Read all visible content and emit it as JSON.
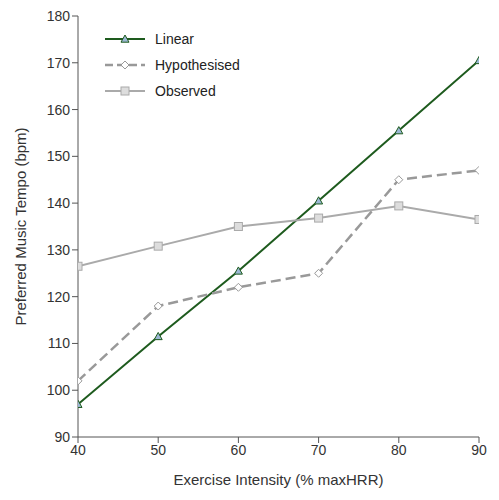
{
  "chart_data": {
    "type": "line",
    "x_label": "Exercise Intensity (% maxHRR)",
    "y_label": "Preferred Music Tempo (bpm)",
    "x": [
      40,
      50,
      60,
      70,
      80,
      90
    ],
    "xlim": [
      40,
      90
    ],
    "xticks": [
      40,
      50,
      60,
      70,
      80,
      90
    ],
    "ylim": [
      90,
      180
    ],
    "yticks": [
      90,
      100,
      110,
      120,
      130,
      140,
      150,
      160,
      170,
      180
    ],
    "grid": false,
    "legend": "upper left",
    "series": [
      {
        "name": "Linear",
        "color": "#1e5b1e",
        "marker": "triangle",
        "line_style": "solid",
        "values": [
          97,
          111.5,
          125.5,
          140.5,
          155.5,
          170.5
        ]
      },
      {
        "name": "Hypothesised",
        "color": "#999999",
        "marker": "diamond",
        "line_style": "dashed",
        "values": [
          102,
          118,
          122,
          125,
          145,
          147
        ]
      },
      {
        "name": "Observed",
        "color": "#aaaaaa",
        "marker": "square",
        "line_style": "solid",
        "values": [
          126.5,
          130.8,
          135,
          136.8,
          139.4,
          136.5
        ]
      }
    ]
  }
}
